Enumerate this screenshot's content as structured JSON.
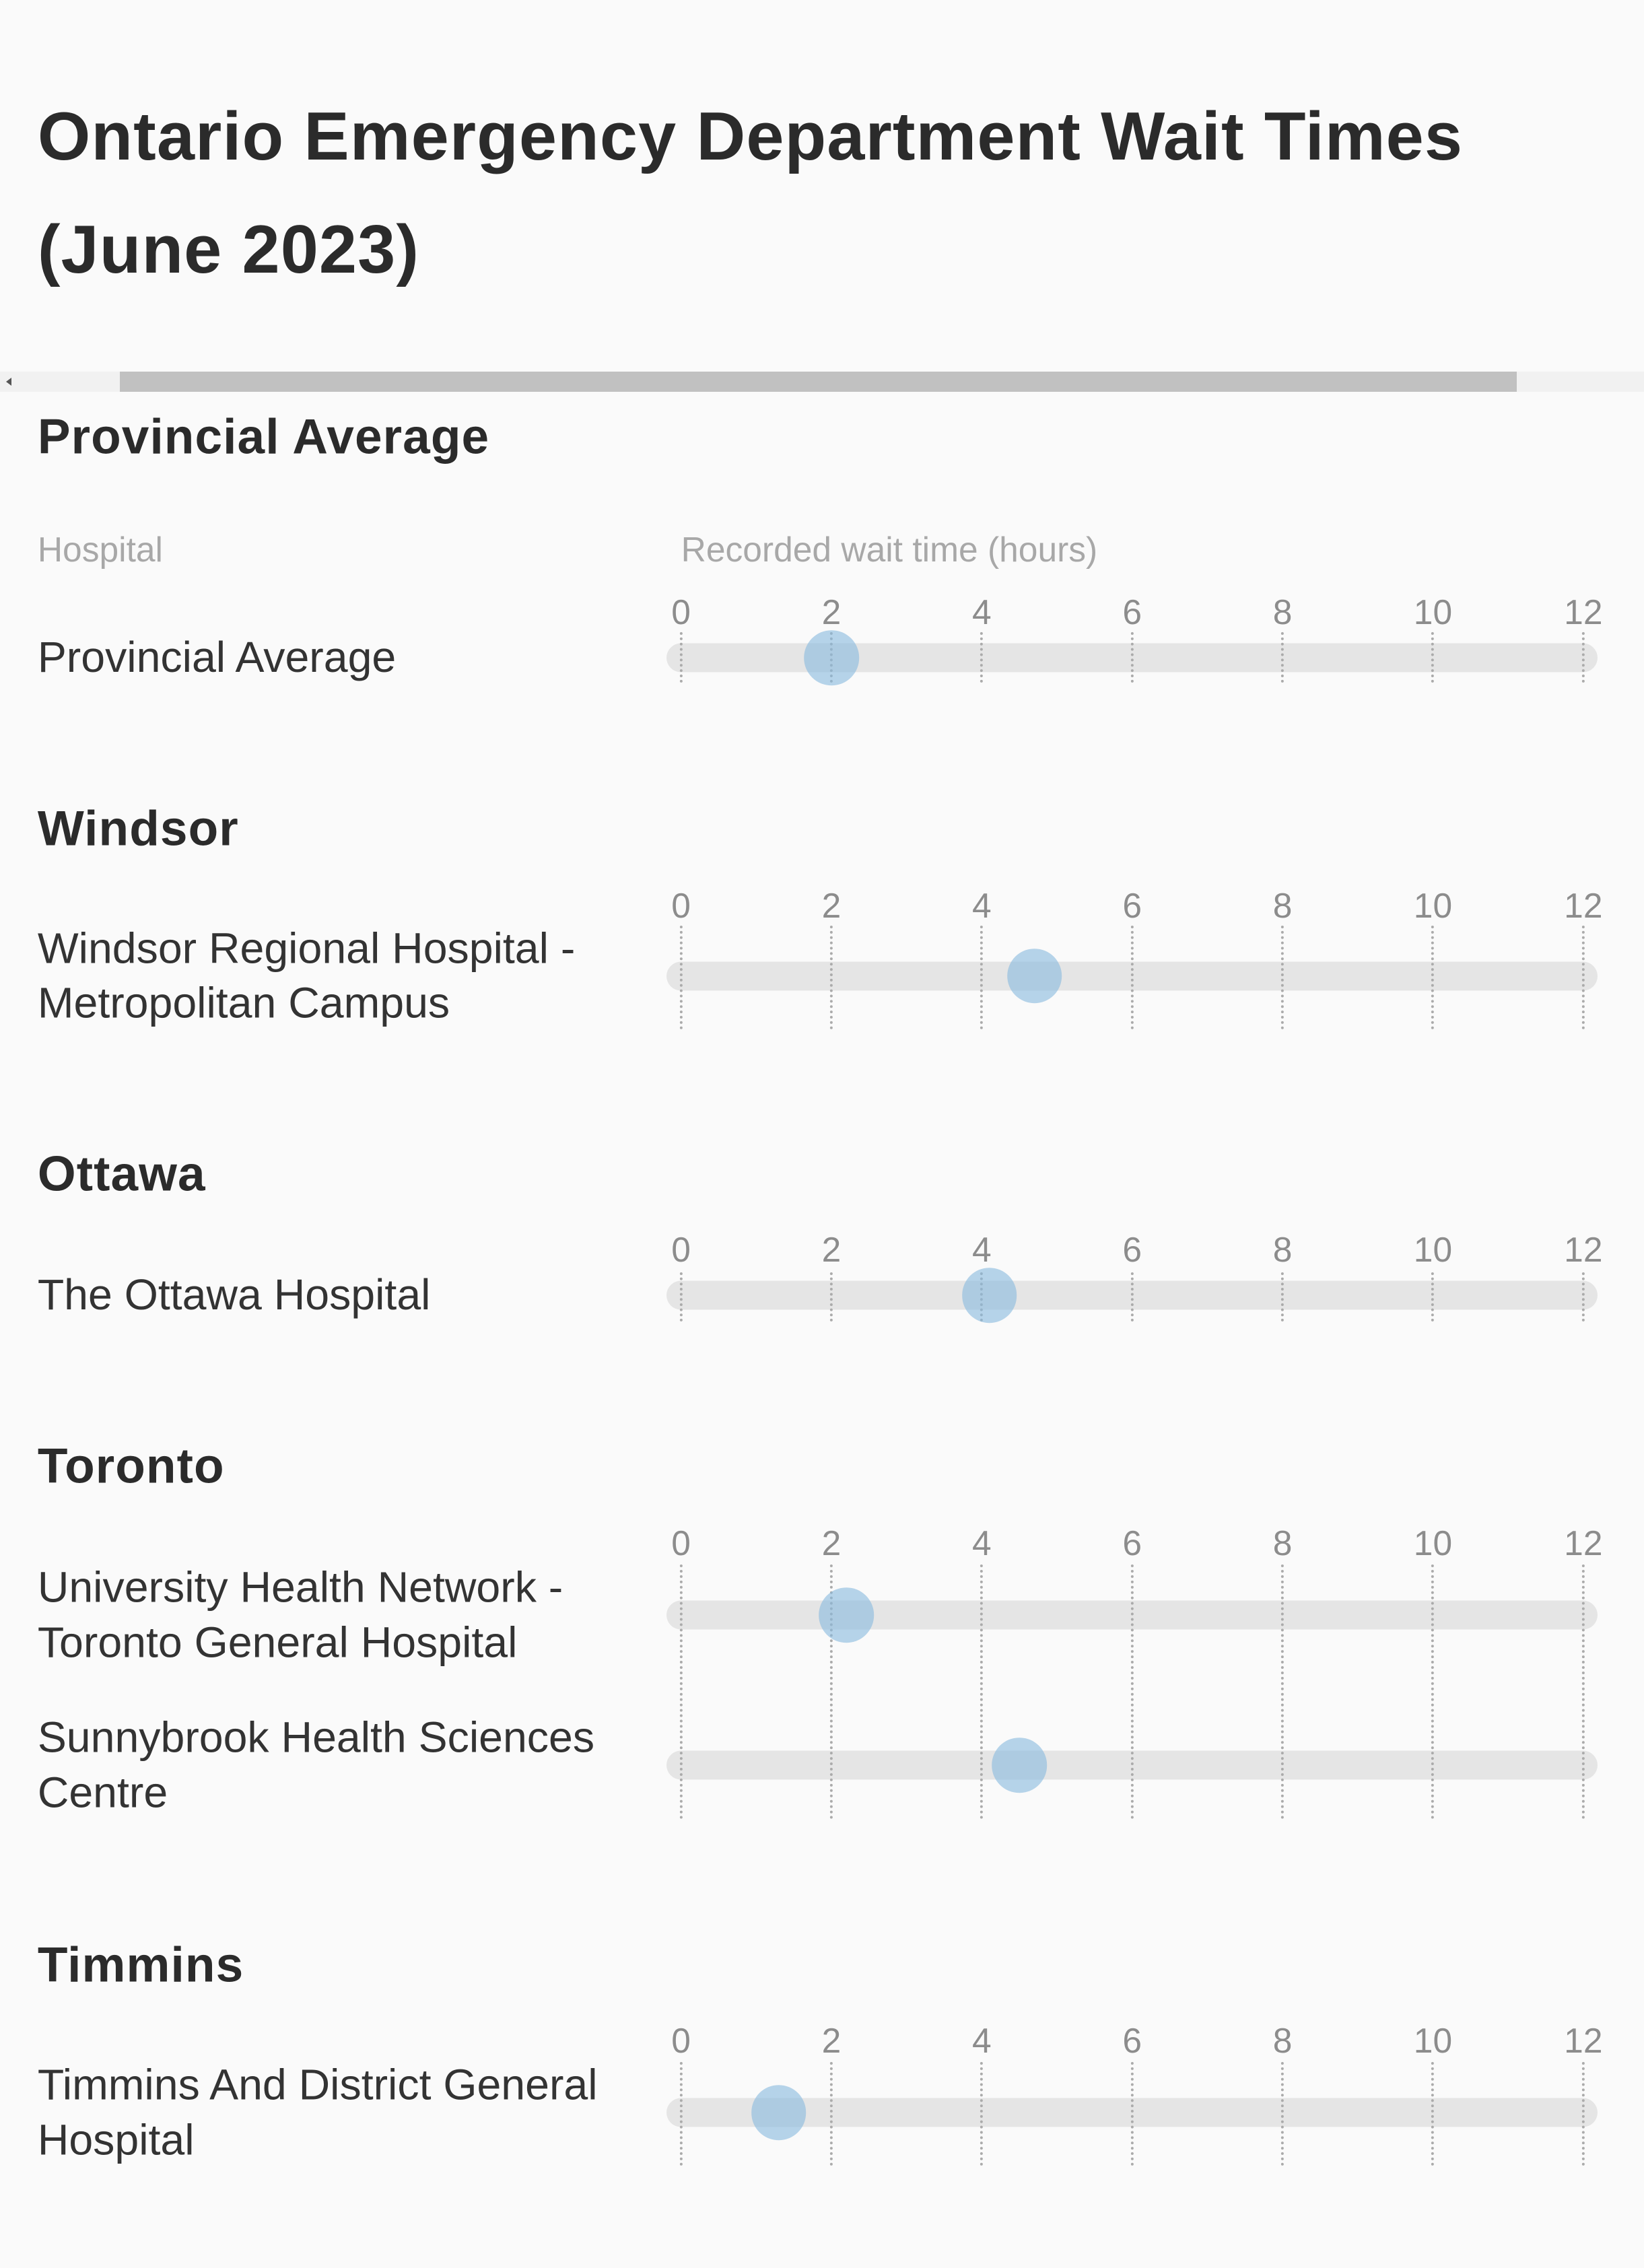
{
  "title": "Ontario Emergency Department Wait Times (June 2023)",
  "column_headers": {
    "hospital": "Hospital",
    "wait": "Recorded wait time (hours)"
  },
  "colors": {
    "dot": "#87b9de",
    "track": "#e5e5e5",
    "text": "#2b2b2b"
  },
  "chart_data": {
    "type": "scatter",
    "title": "Ontario Emergency Department Wait Times (June 2023)",
    "xlabel": "Recorded wait time (hours)",
    "ylabel": "Hospital",
    "xlim": [
      0,
      12
    ],
    "x_ticks": [
      "0",
      "2",
      "4",
      "6",
      "8",
      "10",
      "12"
    ],
    "grid": true,
    "groups": [
      {
        "name": "Provincial Average",
        "rows": [
          {
            "label": "Provincial Average",
            "value": 2.0
          }
        ]
      },
      {
        "name": "Windsor",
        "rows": [
          {
            "label": "Windsor Regional Hospital - Metropolitan Campus",
            "value": 4.7
          }
        ]
      },
      {
        "name": "Ottawa",
        "rows": [
          {
            "label": "The Ottawa Hospital",
            "value": 4.1
          }
        ]
      },
      {
        "name": "Toronto",
        "rows": [
          {
            "label": "University Health Network - Toronto General Hospital",
            "value": 2.2
          },
          {
            "label": "Sunnybrook Health Sciences Centre",
            "value": 4.5
          }
        ]
      },
      {
        "name": "Timmins",
        "rows": [
          {
            "label": "Timmins And District General Hospital",
            "value": 1.3
          }
        ]
      }
    ]
  }
}
